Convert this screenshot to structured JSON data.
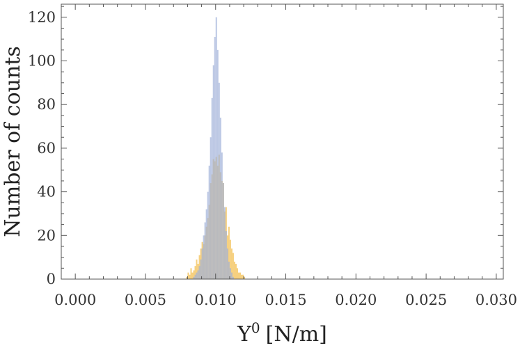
{
  "chart_data": {
    "type": "bar",
    "subtype": "overlaid-histogram",
    "title": "",
    "xlabel": "Υ",
    "xlabel_superscript": "0",
    "xlabel_unit": "[N/m]",
    "ylabel": "Number of counts",
    "xlim": [
      -0.001,
      0.0305
    ],
    "ylim": [
      0,
      126
    ],
    "xticks": [
      0.0,
      0.005,
      0.01,
      0.015,
      0.02,
      0.025,
      0.03
    ],
    "xtick_labels": [
      "0.000",
      "0.005",
      "0.010",
      "0.015",
      "0.020",
      "0.025",
      "0.030"
    ],
    "yticks": [
      0,
      20,
      40,
      60,
      80,
      100,
      120
    ],
    "ytick_labels": [
      "0",
      "20",
      "40",
      "60",
      "80",
      "100",
      "120"
    ],
    "grid": false,
    "bin_width": 0.0001,
    "series": [
      {
        "color": "#f5c869",
        "x": [
          0.0079,
          0.008,
          0.0081,
          0.0082,
          0.0083,
          0.0084,
          0.0085,
          0.0086,
          0.0087,
          0.0088,
          0.0089,
          0.009,
          0.0091,
          0.0092,
          0.0093,
          0.0094,
          0.0095,
          0.0096,
          0.0097,
          0.0098,
          0.0099,
          0.01,
          0.0101,
          0.0102,
          0.0103,
          0.0104,
          0.0105,
          0.0106,
          0.0107,
          0.0108,
          0.0109,
          0.011,
          0.0111,
          0.0112,
          0.0113,
          0.0114,
          0.0115,
          0.0116,
          0.0117,
          0.0118,
          0.0119,
          0.012
        ],
        "values": [
          1,
          3,
          2,
          5,
          3,
          4,
          6,
          9,
          7,
          11,
          14,
          17,
          16,
          20,
          24,
          28,
          34,
          44,
          48,
          55,
          54,
          56,
          52,
          57,
          49,
          45,
          44,
          31,
          33,
          20,
          24,
          18,
          14,
          12,
          8,
          7,
          5,
          3,
          3,
          2,
          2,
          1
        ]
      },
      {
        "color": "#9fb0d8",
        "x": [
          0.0084,
          0.0085,
          0.0086,
          0.0087,
          0.0088,
          0.0089,
          0.009,
          0.0091,
          0.0092,
          0.0093,
          0.0094,
          0.0095,
          0.0096,
          0.0097,
          0.0098,
          0.0099,
          0.01,
          0.0101,
          0.0102,
          0.0103,
          0.0104,
          0.0105,
          0.0106,
          0.0107,
          0.0108,
          0.0109,
          0.011,
          0.0111,
          0.0112
        ],
        "values": [
          1,
          2,
          3,
          4,
          6,
          9,
          14,
          20,
          26,
          32,
          40,
          52,
          65,
          83,
          98,
          111,
          120,
          105,
          90,
          74,
          58,
          44,
          33,
          22,
          14,
          8,
          5,
          3,
          1
        ]
      }
    ]
  }
}
